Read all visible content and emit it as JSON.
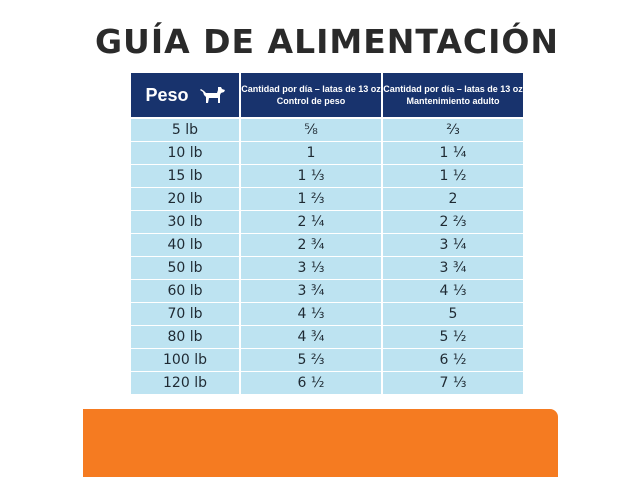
{
  "title": "GUÍA DE ALIMENTACIÓN",
  "table": {
    "headers": {
      "weight": "Peso",
      "control_line1": "Cantidad por día – latas de 13 oz",
      "control_line2": "Control de peso",
      "maint_line1": "Cantidad por día – latas de 13 oz",
      "maint_line2": "Mantenimiento adulto"
    },
    "header_icon": "dog-icon",
    "rows": [
      {
        "weight": "5 lb",
        "control": "⅝",
        "maintenance": "⅔"
      },
      {
        "weight": "10 lb",
        "control": "1",
        "maintenance": "1 ¼"
      },
      {
        "weight": "15 lb",
        "control": "1 ⅓",
        "maintenance": "1 ½"
      },
      {
        "weight": "20 lb",
        "control": "1 ⅔",
        "maintenance": "2"
      },
      {
        "weight": "30 lb",
        "control": "2 ¼",
        "maintenance": "2 ⅔"
      },
      {
        "weight": "40 lb",
        "control": "2 ¾",
        "maintenance": "3 ¼"
      },
      {
        "weight": "50 lb",
        "control": "3 ⅓",
        "maintenance": "3 ¾"
      },
      {
        "weight": "60 lb",
        "control": "3 ¾",
        "maintenance": "4 ⅓"
      },
      {
        "weight": "70 lb",
        "control": "4 ⅓",
        "maintenance": "5"
      },
      {
        "weight": "80 lb",
        "control": "4 ¾",
        "maintenance": "5 ½"
      },
      {
        "weight": "100 lb",
        "control": "5 ⅔",
        "maintenance": "6 ½"
      },
      {
        "weight": "120 lb",
        "control": "6 ½",
        "maintenance": "7 ⅓"
      }
    ]
  },
  "colors": {
    "header_bg": "#18336d",
    "cell_bg": "#bde3f1",
    "title_text": "#2a2a2a",
    "orange_bar": "#f57b21"
  }
}
